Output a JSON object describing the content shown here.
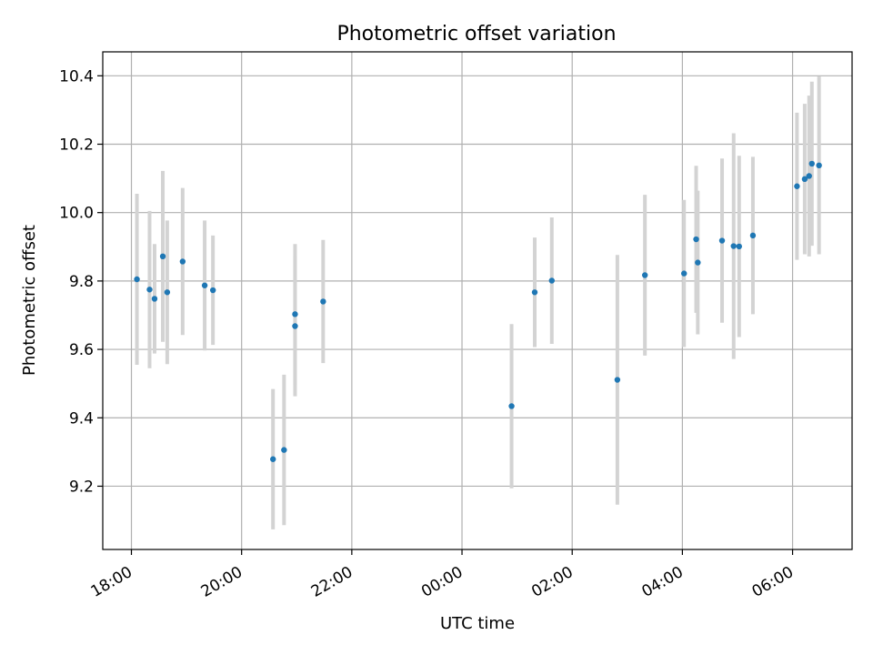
{
  "chart_data": {
    "type": "scatter",
    "title": "Photometric offset variation",
    "xlabel": "UTC time",
    "ylabel": "Photometric offset",
    "x_unit": "hours",
    "xlim": [
      -0.52,
      13.08
    ],
    "ylim": [
      9.015,
      10.47
    ],
    "x_ticks": [
      {
        "value": 0,
        "label": "18:00"
      },
      {
        "value": 2,
        "label": "20:00"
      },
      {
        "value": 4,
        "label": "22:00"
      },
      {
        "value": 6,
        "label": "00:00"
      },
      {
        "value": 8,
        "label": "02:00"
      },
      {
        "value": 10,
        "label": "04:00"
      },
      {
        "value": 12,
        "label": "06:00"
      }
    ],
    "y_ticks": [
      {
        "value": 9.2,
        "label": "9.2"
      },
      {
        "value": 9.4,
        "label": "9.4"
      },
      {
        "value": 9.6,
        "label": "9.6"
      },
      {
        "value": 9.8,
        "label": "9.8"
      },
      {
        "value": 10.0,
        "label": "10.0"
      },
      {
        "value": 10.2,
        "label": "10.2"
      },
      {
        "value": 10.4,
        "label": "10.4"
      }
    ],
    "grid": true,
    "marker_color": "#1f77b4",
    "errorbar_color": "#d3d3d3",
    "points": [
      {
        "x": 0.1,
        "y": 9.805,
        "err": 0.25
      },
      {
        "x": 0.33,
        "y": 9.775,
        "err": 0.23
      },
      {
        "x": 0.42,
        "y": 9.748,
        "err": 0.16
      },
      {
        "x": 0.57,
        "y": 9.872,
        "err": 0.25
      },
      {
        "x": 0.65,
        "y": 9.767,
        "err": 0.21
      },
      {
        "x": 0.93,
        "y": 9.857,
        "err": 0.215
      },
      {
        "x": 1.33,
        "y": 9.787,
        "err": 0.19
      },
      {
        "x": 1.48,
        "y": 9.773,
        "err": 0.16
      },
      {
        "x": 2.57,
        "y": 9.279,
        "err": 0.205
      },
      {
        "x": 2.77,
        "y": 9.306,
        "err": 0.22
      },
      {
        "x": 2.97,
        "y": 9.703,
        "err": 0.205
      },
      {
        "x": 2.97,
        "y": 9.668,
        "err": 0.205
      },
      {
        "x": 3.48,
        "y": 9.74,
        "err": 0.18
      },
      {
        "x": 6.9,
        "y": 9.434,
        "err": 0.24
      },
      {
        "x": 7.32,
        "y": 9.767,
        "err": 0.16
      },
      {
        "x": 7.63,
        "y": 9.801,
        "err": 0.185
      },
      {
        "x": 8.82,
        "y": 9.511,
        "err": 0.365
      },
      {
        "x": 9.32,
        "y": 9.817,
        "err": 0.235
      },
      {
        "x": 10.03,
        "y": 9.822,
        "err": 0.215
      },
      {
        "x": 10.25,
        "y": 9.922,
        "err": 0.215
      },
      {
        "x": 10.28,
        "y": 9.854,
        "err": 0.21
      },
      {
        "x": 10.72,
        "y": 9.918,
        "err": 0.24
      },
      {
        "x": 10.93,
        "y": 9.902,
        "err": 0.33
      },
      {
        "x": 11.03,
        "y": 9.901,
        "err": 0.265
      },
      {
        "x": 11.28,
        "y": 9.933,
        "err": 0.23
      },
      {
        "x": 12.08,
        "y": 10.077,
        "err": 0.215
      },
      {
        "x": 12.22,
        "y": 10.098,
        "err": 0.22
      },
      {
        "x": 12.3,
        "y": 10.107,
        "err": 0.235
      },
      {
        "x": 12.35,
        "y": 10.143,
        "err": 0.24
      },
      {
        "x": 12.48,
        "y": 10.138,
        "err": 0.26
      }
    ]
  }
}
